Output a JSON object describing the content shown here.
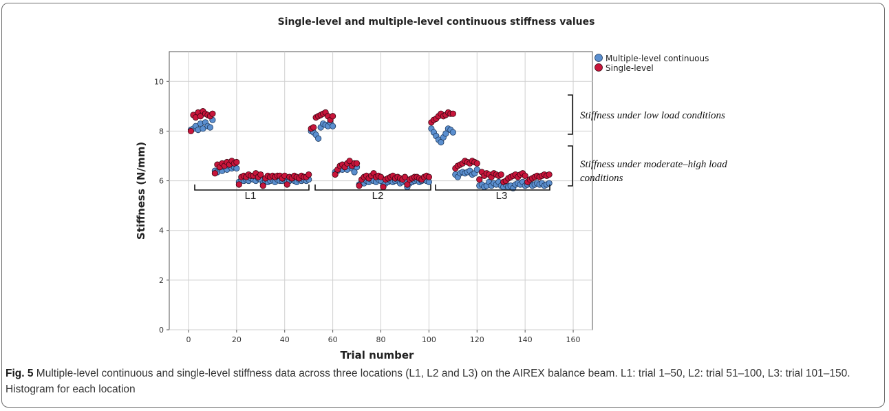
{
  "chart_data": {
    "type": "scatter",
    "title": "Single-level and multiple-level continuous stiffness values",
    "xlabel": "Trial number",
    "ylabel": "Stiffness (N/mm)",
    "xlim": [
      -8,
      168
    ],
    "ylim": [
      0,
      11.2
    ],
    "xticks": [
      0,
      20,
      40,
      60,
      80,
      100,
      120,
      140,
      160
    ],
    "yticks": [
      0,
      2,
      4,
      6,
      8,
      10
    ],
    "grid": true,
    "legend_position": "top-right",
    "series": [
      {
        "name": "Multiple-level continuous",
        "color": "#5b8fcf",
        "x": [
          1,
          2,
          3,
          4,
          5,
          6,
          7,
          8,
          9,
          10,
          11,
          12,
          13,
          14,
          15,
          16,
          17,
          18,
          19,
          20,
          21,
          22,
          23,
          24,
          25,
          26,
          27,
          28,
          29,
          30,
          31,
          32,
          33,
          34,
          35,
          36,
          37,
          38,
          39,
          40,
          41,
          42,
          43,
          44,
          45,
          46,
          47,
          48,
          49,
          50,
          51,
          52,
          53,
          54,
          55,
          56,
          57,
          58,
          59,
          60,
          61,
          62,
          63,
          64,
          65,
          66,
          67,
          68,
          69,
          70,
          71,
          72,
          73,
          74,
          75,
          76,
          77,
          78,
          79,
          80,
          81,
          82,
          83,
          84,
          85,
          86,
          87,
          88,
          89,
          90,
          91,
          92,
          93,
          94,
          95,
          96,
          97,
          98,
          99,
          100,
          101,
          102,
          103,
          104,
          105,
          106,
          107,
          108,
          109,
          110,
          111,
          112,
          113,
          114,
          115,
          116,
          117,
          118,
          119,
          120,
          121,
          122,
          123,
          124,
          125,
          126,
          127,
          128,
          129,
          130,
          131,
          132,
          133,
          134,
          135,
          136,
          137,
          138,
          139,
          140,
          141,
          142,
          143,
          144,
          145,
          146,
          147,
          148,
          149,
          150
        ],
        "y": [
          8.05,
          8.1,
          8.2,
          8.05,
          8.3,
          8.1,
          8.35,
          8.2,
          8.15,
          8.45,
          6.4,
          6.35,
          6.5,
          6.4,
          6.55,
          6.45,
          6.6,
          6.5,
          6.55,
          6.5,
          5.95,
          6.05,
          6.0,
          6.05,
          6.0,
          6.1,
          6.05,
          6.0,
          6.1,
          6.05,
          5.9,
          6.0,
          5.95,
          6.0,
          6.05,
          5.95,
          6.05,
          6.0,
          6.0,
          6.05,
          5.95,
          6.0,
          6.05,
          6.0,
          5.95,
          6.05,
          6.0,
          6.05,
          6.0,
          6.05,
          8.0,
          7.95,
          7.85,
          7.7,
          8.15,
          8.3,
          8.25,
          8.2,
          8.35,
          8.2,
          6.35,
          6.4,
          6.5,
          6.45,
          6.55,
          6.45,
          6.6,
          6.5,
          6.35,
          6.55,
          5.85,
          5.95,
          5.9,
          6.0,
          5.95,
          6.05,
          6.0,
          5.95,
          6.05,
          6.0,
          5.8,
          5.9,
          5.95,
          6.0,
          5.95,
          6.0,
          6.05,
          5.9,
          5.95,
          6.0,
          5.75,
          5.9,
          5.95,
          6.0,
          6.05,
          5.95,
          6.0,
          6.05,
          6.0,
          5.95,
          8.1,
          7.95,
          7.8,
          7.65,
          7.55,
          7.75,
          7.9,
          8.1,
          8.05,
          7.95,
          6.25,
          6.15,
          6.3,
          6.35,
          6.3,
          6.35,
          6.4,
          6.25,
          6.3,
          6.45,
          5.8,
          5.85,
          5.75,
          5.8,
          5.95,
          5.8,
          5.9,
          5.85,
          5.95,
          5.8,
          5.75,
          5.85,
          5.75,
          5.8,
          5.7,
          5.85,
          5.9,
          5.85,
          5.95,
          5.8,
          5.85,
          5.9,
          5.8,
          5.85,
          5.9,
          5.85,
          5.9,
          5.8,
          5.85,
          5.9
        ]
      },
      {
        "name": "Single-level",
        "color": "#c8153b",
        "x": [
          1,
          2,
          3,
          4,
          5,
          6,
          7,
          8,
          9,
          10,
          11,
          12,
          13,
          14,
          15,
          16,
          17,
          18,
          19,
          20,
          21,
          22,
          23,
          24,
          25,
          26,
          27,
          28,
          29,
          30,
          31,
          32,
          33,
          34,
          35,
          36,
          37,
          38,
          39,
          40,
          41,
          42,
          43,
          44,
          45,
          46,
          47,
          48,
          49,
          50,
          51,
          52,
          53,
          54,
          55,
          56,
          57,
          58,
          59,
          60,
          61,
          62,
          63,
          64,
          65,
          66,
          67,
          68,
          69,
          70,
          71,
          72,
          73,
          74,
          75,
          76,
          77,
          78,
          79,
          80,
          81,
          82,
          83,
          84,
          85,
          86,
          87,
          88,
          89,
          90,
          91,
          92,
          93,
          94,
          95,
          96,
          97,
          98,
          99,
          100,
          101,
          102,
          103,
          104,
          105,
          106,
          107,
          108,
          109,
          110,
          111,
          112,
          113,
          114,
          115,
          116,
          117,
          118,
          119,
          120,
          121,
          122,
          123,
          124,
          125,
          126,
          127,
          128,
          129,
          130,
          131,
          132,
          133,
          134,
          135,
          136,
          137,
          138,
          139,
          140,
          141,
          142,
          143,
          144,
          145,
          146,
          147,
          148,
          149,
          150
        ],
        "y": [
          8.0,
          8.65,
          8.55,
          8.75,
          8.6,
          8.8,
          8.7,
          8.65,
          8.6,
          8.7,
          6.3,
          6.65,
          6.55,
          6.7,
          6.6,
          6.75,
          6.65,
          6.8,
          6.7,
          6.75,
          5.85,
          6.15,
          6.2,
          6.15,
          6.25,
          6.2,
          6.2,
          6.3,
          6.15,
          6.25,
          5.8,
          6.1,
          6.2,
          6.15,
          6.2,
          6.15,
          6.2,
          6.2,
          6.1,
          6.2,
          5.85,
          6.15,
          6.1,
          6.2,
          6.15,
          6.1,
          6.2,
          6.15,
          6.15,
          6.25,
          8.1,
          8.15,
          8.55,
          8.6,
          8.65,
          8.7,
          8.75,
          8.6,
          8.45,
          8.6,
          6.25,
          6.45,
          6.6,
          6.65,
          6.55,
          6.7,
          6.8,
          6.6,
          6.7,
          6.7,
          5.8,
          6.05,
          6.15,
          6.2,
          6.1,
          6.2,
          6.3,
          6.15,
          6.2,
          6.15,
          5.75,
          6.05,
          6.1,
          6.15,
          6.2,
          6.1,
          6.15,
          6.1,
          6.05,
          6.15,
          5.85,
          6.05,
          6.1,
          6.15,
          6.15,
          6.1,
          6.05,
          6.15,
          6.2,
          6.15,
          8.35,
          8.45,
          8.5,
          8.6,
          8.7,
          8.6,
          8.65,
          8.75,
          8.7,
          8.7,
          6.5,
          6.6,
          6.65,
          6.7,
          6.8,
          6.75,
          6.7,
          6.8,
          6.75,
          6.7,
          6.05,
          6.35,
          6.2,
          6.3,
          6.25,
          6.15,
          6.3,
          6.25,
          6.2,
          6.25,
          5.95,
          6.0,
          6.1,
          6.15,
          6.2,
          6.25,
          6.15,
          6.25,
          6.3,
          6.2,
          5.95,
          6.05,
          6.1,
          6.15,
          6.2,
          6.15,
          6.2,
          6.25,
          6.2,
          6.25
        ]
      }
    ],
    "annotations": {
      "location_labels": [
        "L1",
        "L2",
        "L3"
      ],
      "low_load": "Stiffness under low load conditions",
      "moderate_load_line1": "Stiffness under moderate–high load",
      "moderate_load_line2": "conditions"
    }
  },
  "caption": {
    "bold": "Fig. 5",
    "text": " Multiple-level continuous and single-level stiffness data across three locations (L1, L2 and L3) on the AIREX balance beam. L1: trial 1–50, L2: trial 51–100, L3: trial 101–150. Histogram for each location"
  }
}
